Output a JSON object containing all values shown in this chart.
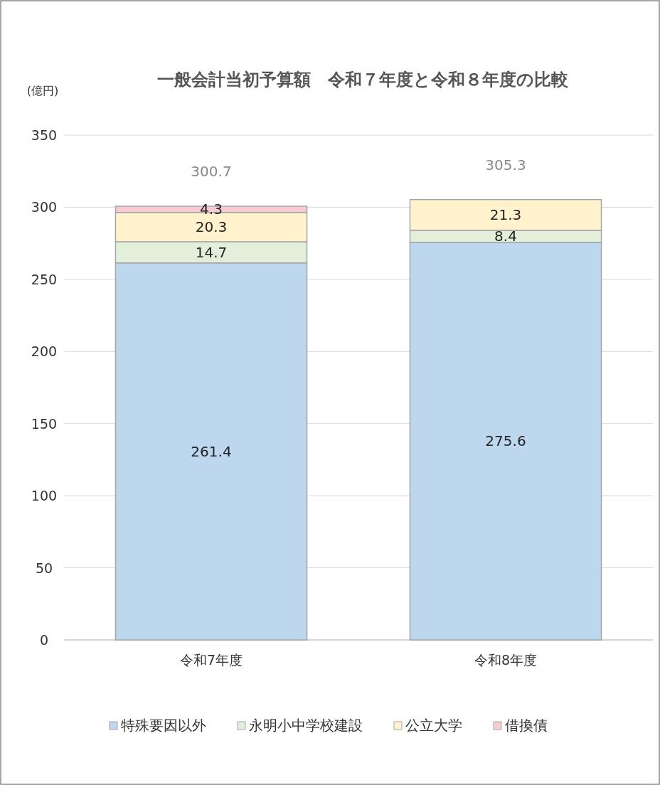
{
  "chart_data": {
    "type": "bar",
    "stacked": true,
    "title": "一般会計当初予算額　令和７年度と令和８年度の比較",
    "ylabel": "(億円)",
    "categories": [
      "令和7年度",
      "令和8年度"
    ],
    "series": [
      {
        "name": "特殊要因以外",
        "color": "#bdd7ee",
        "values": [
          261.4,
          275.6
        ]
      },
      {
        "name": "永明小中学校建設",
        "color": "#e2efda",
        "values": [
          14.7,
          8.4
        ]
      },
      {
        "name": "公立大学",
        "color": "#fff2cc",
        "values": [
          20.3,
          21.3
        ]
      },
      {
        "name": "借換債",
        "color": "#f8cbd3",
        "values": [
          4.3,
          null
        ]
      }
    ],
    "totals": [
      "300.7",
      "305.3"
    ],
    "data_labels": true,
    "ylim": [
      0,
      350
    ],
    "yticks": [
      0,
      50,
      100,
      150,
      200,
      250,
      300,
      350
    ],
    "grid": "y",
    "legend": "bottom"
  }
}
